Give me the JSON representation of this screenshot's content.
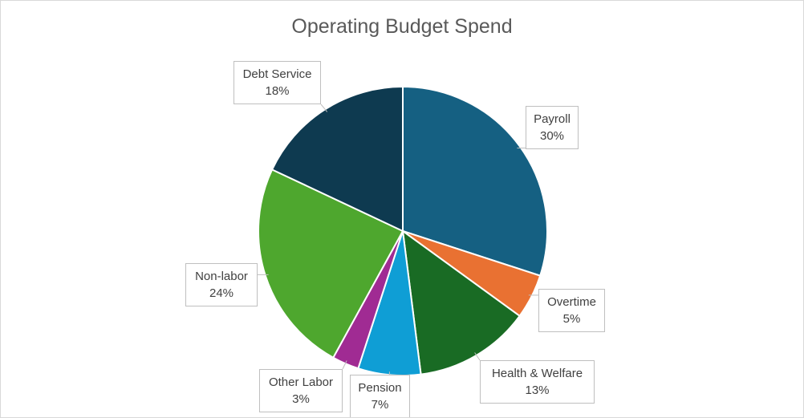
{
  "chart_data": {
    "type": "pie",
    "title": "Operating Budget Spend",
    "slices": [
      {
        "label": "Payroll",
        "value": 30,
        "display": "30%",
        "color": "#156082"
      },
      {
        "label": "Overtime",
        "value": 5,
        "display": "5%",
        "color": "#E97132"
      },
      {
        "label": "Health & Welfare",
        "value": 13,
        "display": "13%",
        "color": "#196B24"
      },
      {
        "label": "Pension",
        "value": 7,
        "display": "7%",
        "color": "#0F9ED5"
      },
      {
        "label": "Other Labor",
        "value": 3,
        "display": "3%",
        "color": "#A02B93"
      },
      {
        "label": "Non-labor",
        "value": 24,
        "display": "24%",
        "color": "#4EA72E"
      },
      {
        "label": "Debt Service",
        "value": 18,
        "display": "18%",
        "color": "#0E3A50"
      }
    ],
    "legend": "none",
    "data_labels": "callouts"
  }
}
